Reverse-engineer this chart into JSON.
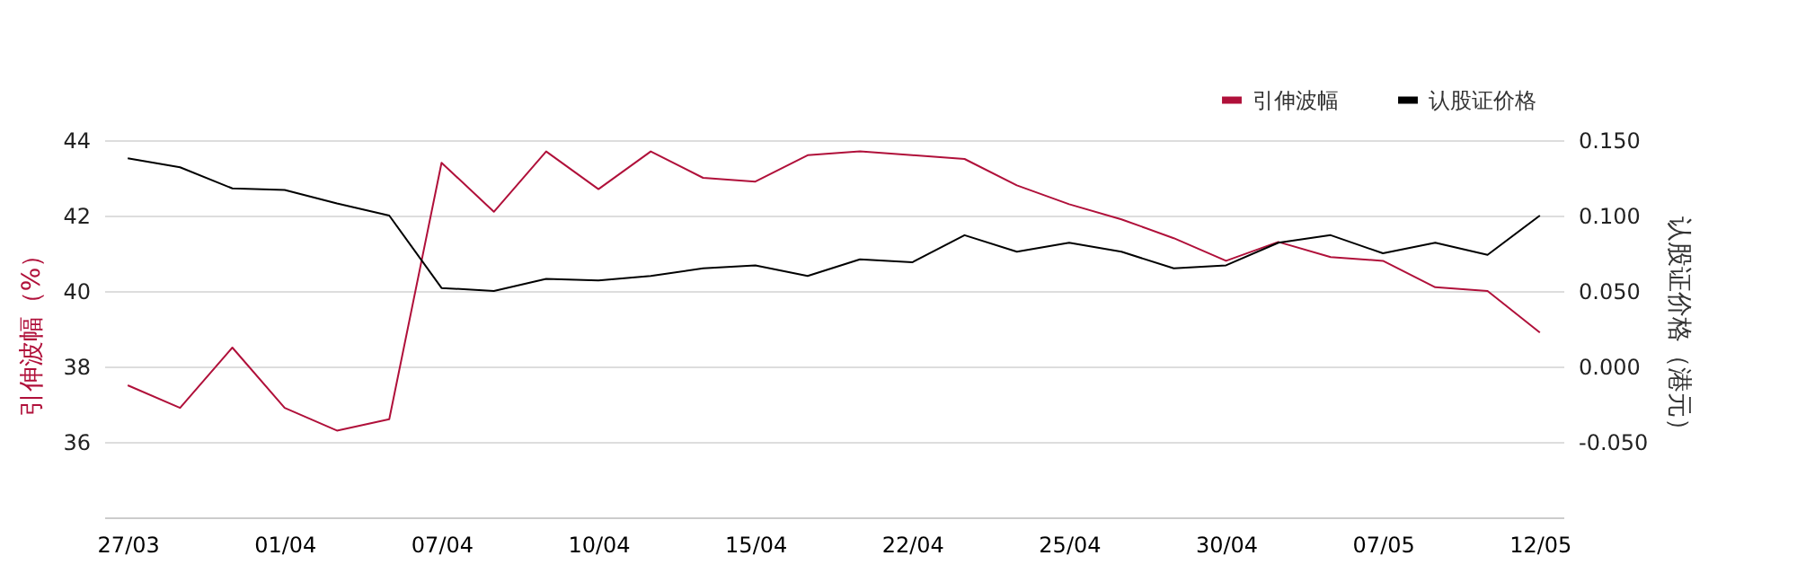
{
  "chart_data": {
    "type": "line",
    "categories": [
      "27/03",
      null,
      null,
      "01/04",
      null,
      null,
      "07/04",
      null,
      null,
      "10/04",
      null,
      null,
      "15/04",
      null,
      null,
      "22/04",
      null,
      null,
      "25/04",
      null,
      null,
      "30/04",
      null,
      null,
      "07/05",
      null,
      null,
      "12/05"
    ],
    "series": [
      {
        "name": "引伸波幅",
        "color": "#b0103a",
        "values": [
          37.5,
          36.9,
          38.5,
          36.9,
          36.3,
          36.6,
          43.4,
          42.1,
          43.7,
          42.7,
          43.7,
          43.0,
          42.9,
          43.6,
          43.7,
          43.6,
          43.5,
          42.8,
          42.3,
          41.9,
          41.4,
          40.8,
          41.3,
          40.9,
          40.8,
          40.1,
          40.0,
          38.9
        ]
      },
      {
        "name": "认股证价格",
        "color": "#000000",
        "axis": "y2",
        "values": [
          0.138,
          0.132,
          0.118,
          0.117,
          0.108,
          0.1,
          0.052,
          0.05,
          0.058,
          0.057,
          0.06,
          0.065,
          0.067,
          0.06,
          0.071,
          0.069,
          0.087,
          0.076,
          0.082,
          0.076,
          0.065,
          0.067,
          0.082,
          0.087,
          0.075,
          0.082,
          0.074,
          0.1
        ]
      }
    ],
    "ylabel": "引伸波幅（%）",
    "y2label": "认股证价格（港元）",
    "ylim": [
      34,
      44
    ],
    "yticks": [
      36,
      38,
      40,
      42,
      44
    ],
    "y2lim": [
      -0.1,
      0.15
    ],
    "y2ticks": [
      {
        "value": -0.05,
        "label": "-0.050"
      },
      {
        "value": 0,
        "label": "0.000"
      },
      {
        "value": 0.05,
        "label": "0.050"
      },
      {
        "value": 0.1,
        "label": "0.100"
      },
      {
        "value": 0.15,
        "label": "0.150"
      }
    ],
    "grid": "y",
    "legend": "top right",
    "line_style": "solid",
    "marker": "none"
  }
}
